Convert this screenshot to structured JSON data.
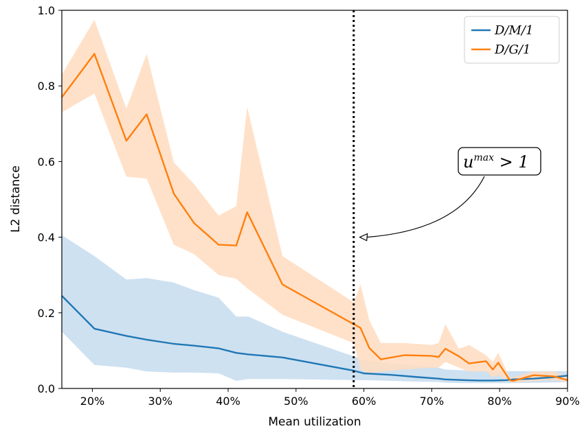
{
  "chart_data": {
    "type": "line",
    "xlabel": "Mean utilization",
    "ylabel": "L2 distance",
    "xlim": [
      15.5,
      90
    ],
    "ylim": [
      0.0,
      1.0
    ],
    "x_ticks": [
      20,
      30,
      40,
      50,
      60,
      70,
      80,
      90
    ],
    "x_tick_labels": [
      "20%",
      "30%",
      "40%",
      "50%",
      "60%",
      "70%",
      "80%",
      "90%"
    ],
    "y_ticks": [
      0.0,
      0.2,
      0.4,
      0.6,
      0.8,
      1.0
    ],
    "y_tick_labels": [
      "0.0",
      "0.2",
      "0.4",
      "0.6",
      "0.8",
      "1.0"
    ],
    "grid": false,
    "legend_position": "top-right",
    "series": [
      {
        "name": "D/M/1",
        "color": "#1f77b4",
        "band_color": "#c6dcee",
        "x": [
          15.5,
          20.3,
          25,
          28,
          32,
          35,
          38.6,
          41.2,
          43,
          48,
          58.5,
          60,
          64,
          68,
          71,
          72,
          75,
          77,
          79,
          81,
          82,
          85,
          88,
          90
        ],
        "y": [
          0.245,
          0.158,
          0.139,
          0.129,
          0.118,
          0.113,
          0.106,
          0.094,
          0.09,
          0.082,
          0.047,
          0.04,
          0.036,
          0.03,
          0.026,
          0.024,
          0.022,
          0.021,
          0.021,
          0.022,
          0.024,
          0.026,
          0.03,
          0.034
        ],
        "lower": [
          0.15,
          0.062,
          0.055,
          0.045,
          0.042,
          0.042,
          0.04,
          0.02,
          0.025,
          0.025,
          0.022,
          0.022,
          0.02,
          0.018,
          0.017,
          0.015,
          0.014,
          0.014,
          0.014,
          0.014,
          0.014,
          0.015,
          0.016,
          0.017
        ],
        "upper": [
          0.405,
          0.35,
          0.288,
          0.292,
          0.28,
          0.26,
          0.24,
          0.19,
          0.19,
          0.15,
          0.085,
          0.075,
          0.065,
          0.06,
          0.055,
          0.05,
          0.048,
          0.047,
          0.045,
          0.046,
          0.046,
          0.046,
          0.046,
          0.046
        ]
      },
      {
        "name": "D/G/1",
        "color": "#ff7f0e",
        "band_color": "#ffdcc0",
        "x": [
          15.5,
          20.3,
          25,
          28,
          32,
          35,
          38.6,
          41.2,
          42.8,
          48,
          58.5,
          59.5,
          60.8,
          62.5,
          66,
          70,
          71,
          72,
          74,
          75.5,
          78,
          79,
          79.8,
          81.5,
          82,
          85,
          88,
          90
        ],
        "y": [
          0.77,
          0.885,
          0.655,
          0.725,
          0.515,
          0.437,
          0.38,
          0.378,
          0.466,
          0.275,
          0.17,
          0.16,
          0.107,
          0.077,
          0.088,
          0.086,
          0.083,
          0.105,
          0.085,
          0.066,
          0.072,
          0.05,
          0.068,
          0.022,
          0.02,
          0.035,
          0.032,
          0.022
        ],
        "lower": [
          0.73,
          0.78,
          0.56,
          0.555,
          0.38,
          0.355,
          0.3,
          0.29,
          0.265,
          0.195,
          0.12,
          0.05,
          0.04,
          0.045,
          0.05,
          0.055,
          0.055,
          0.07,
          0.055,
          0.045,
          0.045,
          0.03,
          0.035,
          0.018,
          0.016,
          0.02,
          0.022,
          0.017
        ],
        "upper": [
          0.83,
          0.975,
          0.74,
          0.885,
          0.598,
          0.54,
          0.457,
          0.482,
          0.745,
          0.35,
          0.228,
          0.275,
          0.18,
          0.12,
          0.12,
          0.115,
          0.12,
          0.17,
          0.105,
          0.115,
          0.088,
          0.07,
          0.095,
          0.028,
          0.03,
          0.045,
          0.045,
          0.03
        ]
      }
    ],
    "vline": {
      "x": 58.5,
      "style": "dotted",
      "color": "#000000"
    },
    "annotation": {
      "base": "u",
      "superscript": "max",
      "suffix": " > 1",
      "arrow_to": {
        "x": 59.4,
        "y": 0.4
      }
    }
  }
}
